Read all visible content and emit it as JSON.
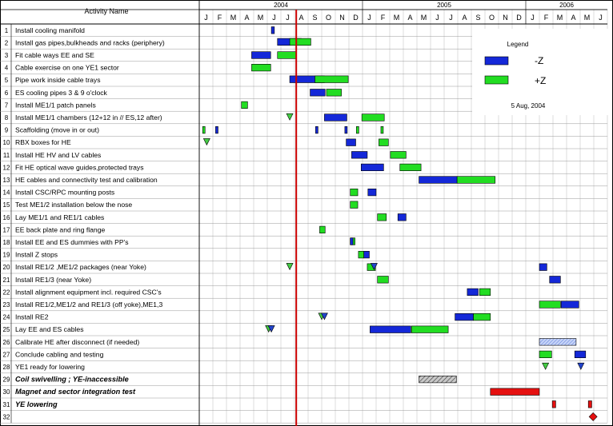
{
  "header": {
    "activity_col": "Activity Name"
  },
  "years": [
    "2004",
    "2005",
    "2006"
  ],
  "months": [
    "J",
    "F",
    "M",
    "A",
    "M",
    "J",
    "J",
    "A",
    "S",
    "O",
    "N",
    "D",
    "J",
    "F",
    "M",
    "A",
    "M",
    "J",
    "J",
    "A",
    "S",
    "O",
    "N",
    "D",
    "J",
    "F",
    "M",
    "A",
    "M",
    "J"
  ],
  "legend": {
    "title": "Legend",
    "items": [
      {
        "label": "-Z",
        "color": "#1428d8"
      },
      {
        "label": "+Z",
        "color": "#22dd22"
      }
    ],
    "date": "5 Aug, 2004"
  },
  "colors": {
    "minus_z": "#1428d8",
    "plus_z": "#22dd22",
    "milestone": "#44cc44",
    "milestone_blue": "#2244cc",
    "today": "#cc0000",
    "critical": "#e51010",
    "hatched": "#a0a0a0",
    "light_blue": "#9fb5f0"
  },
  "chart_data": {
    "type": "gantt",
    "x_unit": "month",
    "x_range": [
      "2004-01",
      "2006-06"
    ],
    "status_date": "2004-08-05",
    "tasks": [
      {
        "id": "1",
        "name": "Install cooling manifold",
        "bars": [
          {
            "start": 5.3,
            "end": 5.52,
            "side": "-Z"
          }
        ]
      },
      {
        "id": "2",
        "name": "Install gas pipes,bulkheads and racks (periphery)",
        "bars": [
          {
            "start": 5.75,
            "end": 7.5,
            "side": "-Z"
          },
          {
            "start": 6.65,
            "end": 8.2,
            "side": "+Z"
          }
        ]
      },
      {
        "id": "3",
        "name": "Fit cable ways  EE and SE",
        "bars": [
          {
            "start": 3.85,
            "end": 5.25,
            "side": "-Z"
          },
          {
            "start": 5.75,
            "end": 7.15,
            "side": "+Z"
          }
        ]
      },
      {
        "id": "4",
        "name": "Cable exercise on one YE1 sector",
        "bars": [
          {
            "start": 3.85,
            "end": 5.25,
            "side": "+Z"
          }
        ]
      },
      {
        "id": "5",
        "name": "Pipe work inside cable trays",
        "bars": [
          {
            "start": 6.65,
            "end": 9.2,
            "side": "-Z"
          },
          {
            "start": 8.5,
            "end": 10.95,
            "side": "+Z"
          }
        ]
      },
      {
        "id": "6",
        "name": "ES cooling pipes 3  & 9 o'clock",
        "bars": [
          {
            "start": 8.15,
            "end": 9.25,
            "side": "-Z"
          },
          {
            "start": 9.35,
            "end": 10.45,
            "side": "+Z"
          }
        ]
      },
      {
        "id": "7",
        "name": "Install ME1/1 patch panels",
        "bars": [
          {
            "start": 3.1,
            "end": 3.55,
            "side": "+Z"
          }
        ]
      },
      {
        "id": "8",
        "name": "Install ME1/1 chambers (12+12 in // ES,12 after)",
        "bars": [
          {
            "start": 9.2,
            "end": 10.85,
            "side": "-Z"
          },
          {
            "start": 11.95,
            "end": 13.6,
            "side": "+Z"
          }
        ],
        "milestones": [
          {
            "at": 6.65,
            "color": "green"
          }
        ]
      },
      {
        "id": "9",
        "name": "Scaffolding (move in or out)",
        "bars": [
          {
            "start": 0.25,
            "end": 0.42,
            "side": "+Z"
          },
          {
            "start": 1.2,
            "end": 1.38,
            "side": "-Z"
          },
          {
            "start": 8.55,
            "end": 8.72,
            "side": "-Z"
          },
          {
            "start": 10.7,
            "end": 10.87,
            "side": "-Z"
          },
          {
            "start": 11.55,
            "end": 11.72,
            "side": "+Z"
          },
          {
            "start": 13.35,
            "end": 13.52,
            "side": "+Z"
          }
        ]
      },
      {
        "id": "10",
        "name": "RBX boxes for HE",
        "bars": [
          {
            "start": 10.8,
            "end": 11.5,
            "side": "-Z"
          },
          {
            "start": 13.2,
            "end": 13.9,
            "side": "+Z"
          }
        ],
        "milestones": [
          {
            "at": 0.55,
            "color": "green"
          }
        ]
      },
      {
        "id": "11",
        "name": "Install HE HV and LV cables",
        "bars": [
          {
            "start": 11.2,
            "end": 12.35,
            "side": "-Z"
          },
          {
            "start": 14.05,
            "end": 15.2,
            "side": "+Z"
          }
        ]
      },
      {
        "id": "12",
        "name": "Fit HE optical wave guides,protected trays",
        "bars": [
          {
            "start": 11.9,
            "end": 13.55,
            "side": "-Z"
          },
          {
            "start": 14.75,
            "end": 16.3,
            "side": "+Z"
          }
        ]
      },
      {
        "id": "13",
        "name": "HE cables and connectivity test and calibration",
        "bars": [
          {
            "start": 16.15,
            "end": 18.95,
            "side": "-Z"
          },
          {
            "start": 18.95,
            "end": 21.75,
            "side": "+Z"
          }
        ]
      },
      {
        "id": "14",
        "name": "Install  CSC/RPC mounting posts",
        "bars": [
          {
            "start": 11.1,
            "end": 11.65,
            "side": "+Z"
          },
          {
            "start": 12.4,
            "end": 13.0,
            "side": "-Z"
          }
        ]
      },
      {
        "id": "15",
        "name": "Test ME1/2 installation below the nose",
        "bars": [
          {
            "start": 11.1,
            "end": 11.65,
            "side": "+Z"
          }
        ]
      },
      {
        "id": "16",
        "name": "Lay ME1/1 and RE1/1 cables",
        "bars": [
          {
            "start": 13.1,
            "end": 13.75,
            "side": "+Z"
          },
          {
            "start": 14.6,
            "end": 15.2,
            "side": "-Z"
          }
        ]
      },
      {
        "id": "17",
        "name": "EE back plate and ring flange",
        "bars": [
          {
            "start": 8.85,
            "end": 9.25,
            "side": "+Z"
          }
        ]
      },
      {
        "id": "18",
        "name": "Install EE and ES dummies with PP's",
        "bars": [
          {
            "start": 11.1,
            "end": 11.45,
            "side": "+Z"
          },
          {
            "start": 11.1,
            "end": 11.3,
            "side": "-Z"
          }
        ]
      },
      {
        "id": "19",
        "name": "Install Z stops",
        "bars": [
          {
            "start": 11.7,
            "end": 12.1,
            "side": "+Z"
          },
          {
            "start": 12.1,
            "end": 12.5,
            "side": "-Z"
          }
        ]
      },
      {
        "id": "20",
        "name": "Install RE1/2 ,ME1/2 packages (near Yoke)",
        "bars": [
          {
            "start": 12.35,
            "end": 12.95,
            "side": "+Z"
          },
          {
            "start": 25.0,
            "end": 25.55,
            "side": "-Z"
          }
        ],
        "milestones": [
          {
            "at": 6.65,
            "color": "green"
          },
          {
            "at": 12.85,
            "color": "blue"
          }
        ]
      },
      {
        "id": "21",
        "name": "Install RE1/3 (near Yoke)",
        "bars": [
          {
            "start": 13.1,
            "end": 13.9,
            "side": "+Z"
          },
          {
            "start": 25.75,
            "end": 26.55,
            "side": "-Z"
          }
        ]
      },
      {
        "id": "22",
        "name": "Install alignment equipment incl. required CSC's",
        "bars": [
          {
            "start": 19.7,
            "end": 20.5,
            "side": "-Z"
          },
          {
            "start": 20.6,
            "end": 21.4,
            "side": "+Z"
          }
        ]
      },
      {
        "id": "23",
        "name": "Install RE1/2,ME1/2 and RE1/3 (off yoke),ME1,3",
        "bars": [
          {
            "start": 25.0,
            "end": 26.55,
            "side": "+Z"
          },
          {
            "start": 26.6,
            "end": 27.9,
            "side": "-Z"
          }
        ]
      },
      {
        "id": "24",
        "name": "Install RE2",
        "bars": [
          {
            "start": 18.8,
            "end": 20.15,
            "side": "-Z"
          },
          {
            "start": 20.15,
            "end": 21.4,
            "side": "+Z"
          }
        ],
        "milestones": [
          {
            "at": 9.0,
            "color": "green"
          },
          {
            "at": 9.2,
            "color": "blue"
          }
        ]
      },
      {
        "id": "25",
        "name": "Lay EE and ES cables",
        "bars": [
          {
            "start": 12.55,
            "end": 15.55,
            "side": "-Z"
          },
          {
            "start": 15.6,
            "end": 18.3,
            "side": "+Z"
          }
        ],
        "milestones": [
          {
            "at": 5.1,
            "color": "green"
          },
          {
            "at": 5.3,
            "color": "blue"
          }
        ]
      },
      {
        "id": "26",
        "name": "Calibrate HE after disconnect (if needed)",
        "bars": [
          {
            "start": 25.0,
            "end": 27.7,
            "side": "hatched-blue"
          }
        ]
      },
      {
        "id": "27",
        "name": "Conclude cabling and testing",
        "bars": [
          {
            "start": 25.0,
            "end": 25.9,
            "side": "+Z"
          },
          {
            "start": 27.6,
            "end": 28.4,
            "side": "-Z"
          }
        ]
      },
      {
        "id": "28",
        "name": "YE1 ready for lowering",
        "milestones": [
          {
            "at": 25.45,
            "color": "green"
          },
          {
            "at": 28.05,
            "color": "blue"
          }
        ]
      },
      {
        "id": "29",
        "name": "Coil swivelling ; YE-inaccessible",
        "bold": true,
        "bars": [
          {
            "start": 16.15,
            "end": 18.9,
            "side": "hatched-grey"
          }
        ]
      },
      {
        "id": "30",
        "name": "Magnet and sector integration test",
        "bold": true,
        "bars": [
          {
            "start": 21.4,
            "end": 25.0,
            "side": "critical"
          }
        ]
      },
      {
        "id": "31",
        "name": "YE lowering",
        "bold": true,
        "bars": [
          {
            "start": 25.95,
            "end": 26.2,
            "side": "critical"
          },
          {
            "start": 28.6,
            "end": 28.85,
            "side": "critical"
          }
        ]
      },
      {
        "id": "32",
        "name": "",
        "diamonds": [
          {
            "at": 28.95
          }
        ]
      }
    ]
  }
}
